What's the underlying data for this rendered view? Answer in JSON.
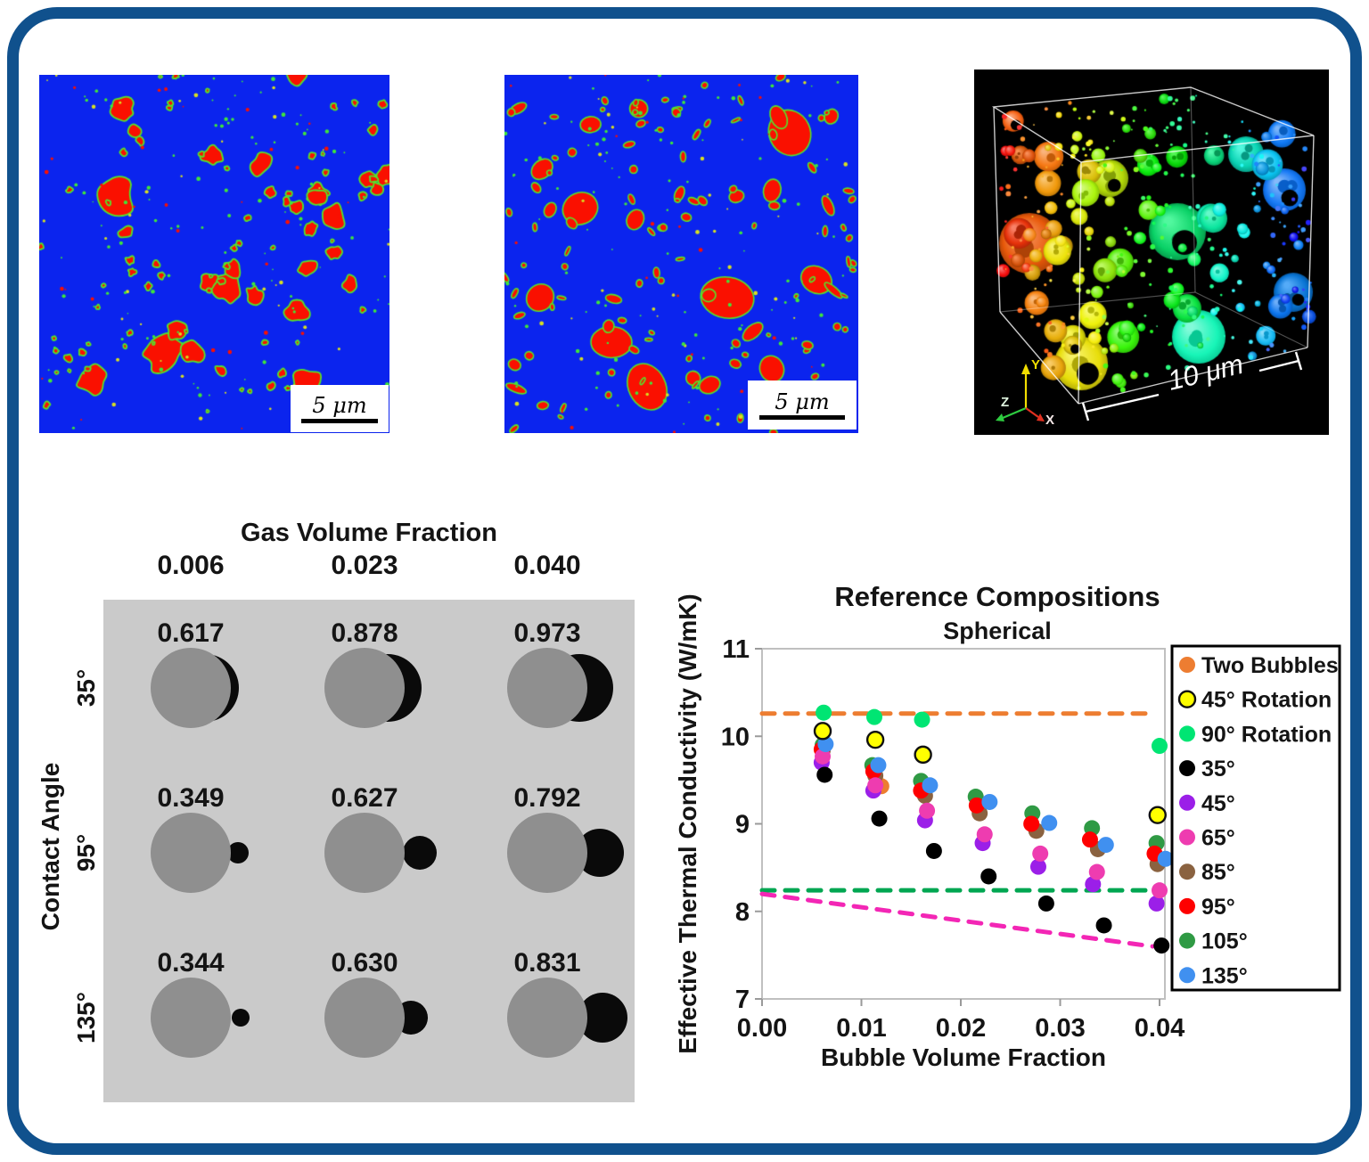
{
  "panels": {
    "seg1": {
      "scale_label": "5 μm",
      "bg": "#0B24EE",
      "blob_fill": "#FA1000",
      "blob_outline": "#55E42A",
      "speck_yellow": "#D8E020",
      "speck_green": "#3FE63A"
    },
    "seg2": {
      "scale_label": "5 μm",
      "bg": "#0B24EE",
      "blob_fill": "#FA1000",
      "blob_outline": "#55E42A",
      "speck_yellow": "#D8E020",
      "speck_green": "#3FE63A"
    },
    "render3d": {
      "scale_label": "10 μm",
      "axis_x": "X",
      "axis_y": "Y",
      "axis_z": "Z",
      "bg": "#000000"
    }
  },
  "grid_diagram": {
    "title": "Gas Volume Fraction",
    "cols": [
      "0.006",
      "0.023",
      "0.040"
    ],
    "row_axis": "Contact Angle",
    "rows": [
      "35°",
      "95°",
      "135°"
    ],
    "values": [
      [
        "0.617",
        "0.878",
        "0.973"
      ],
      [
        "0.349",
        "0.627",
        "0.792"
      ],
      [
        "0.344",
        "0.630",
        "0.831"
      ]
    ],
    "bg": "#CACACA",
    "grain_color": "#8F8F8F",
    "bubble_color": "#0A0A0A",
    "grain_radius": 45,
    "bubbles": [
      [
        [
          16,
          38
        ],
        [
          26,
          38
        ],
        [
          36,
          38
        ]
      ],
      [
        [
          53,
          12
        ],
        [
          62,
          19
        ],
        [
          59,
          27
        ]
      ],
      [
        [
          56,
          10
        ],
        [
          52,
          19
        ],
        [
          62,
          28
        ]
      ]
    ]
  },
  "chart_data": {
    "type": "scatter",
    "title": "Reference Compositions",
    "subtitle": "Spherical",
    "xlabel": "Bubble Volume Fraction",
    "ylabel": "Effective Thermal Conductivity (W/mK)",
    "xlim": [
      0,
      0.0406
    ],
    "ylim": [
      7,
      11
    ],
    "xticks": [
      0,
      0.01,
      0.02,
      0.03,
      0.04
    ],
    "xtick_labels": [
      "0.00",
      "0.01",
      "0.02",
      "0.03",
      "0.04"
    ],
    "yticks": [
      7,
      8,
      9,
      10,
      11
    ],
    "grid": false,
    "legend_position": "right",
    "dashed_lines": [
      {
        "name": "upper-bound",
        "color": "#ED7D31",
        "points": [
          [
            0,
            10.26
          ],
          [
            0.039,
            10.26
          ]
        ]
      },
      {
        "name": "lower-bound",
        "color": "#00A651",
        "points": [
          [
            0,
            8.24
          ],
          [
            0.0393,
            8.24
          ]
        ]
      },
      {
        "name": "series-bound",
        "color": "#F326B5",
        "points": [
          [
            0,
            8.2
          ],
          [
            0.0393,
            7.6
          ]
        ]
      }
    ],
    "series": [
      {
        "name": "Two Bubbles",
        "color": "#ED7D31",
        "outline": null,
        "points": [
          [
            0.012,
            9.43
          ]
        ]
      },
      {
        "name": "45° Rotation",
        "color": "#FFFF00",
        "outline": "#111111",
        "points": [
          [
            0.0061,
            10.06
          ],
          [
            0.0114,
            9.96
          ],
          [
            0.0162,
            9.79
          ],
          [
            0.0398,
            9.1
          ]
        ]
      },
      {
        "name": "90° Rotation",
        "color": "#00E573",
        "outline": null,
        "points": [
          [
            0.0062,
            10.27
          ],
          [
            0.0113,
            10.22
          ],
          [
            0.0161,
            10.19
          ],
          [
            0.04,
            9.89
          ]
        ]
      },
      {
        "name": "35°",
        "color": "#000000",
        "outline": null,
        "points": [
          [
            0.0063,
            9.56
          ],
          [
            0.0118,
            9.06
          ],
          [
            0.0173,
            8.69
          ],
          [
            0.0228,
            8.4
          ],
          [
            0.0286,
            8.09
          ],
          [
            0.0344,
            7.84
          ],
          [
            0.0402,
            7.61
          ]
        ]
      },
      {
        "name": "45°",
        "color": "#9B1FE8",
        "outline": null,
        "points": [
          [
            0.006,
            9.7
          ],
          [
            0.0112,
            9.38
          ],
          [
            0.0164,
            9.04
          ],
          [
            0.0222,
            8.78
          ],
          [
            0.0278,
            8.51
          ],
          [
            0.0333,
            8.31
          ],
          [
            0.0397,
            8.09
          ]
        ]
      },
      {
        "name": "65°",
        "color": "#EE3CB0",
        "outline": null,
        "points": [
          [
            0.0061,
            9.77
          ],
          [
            0.0114,
            9.44
          ],
          [
            0.0166,
            9.15
          ],
          [
            0.0224,
            8.88
          ],
          [
            0.028,
            8.66
          ],
          [
            0.0337,
            8.45
          ],
          [
            0.04,
            8.24
          ]
        ]
      },
      {
        "name": "85°",
        "color": "#8A6240",
        "outline": null,
        "points": [
          [
            0.0061,
            9.84
          ],
          [
            0.0114,
            9.55
          ],
          [
            0.0164,
            9.32
          ],
          [
            0.0219,
            9.12
          ],
          [
            0.0276,
            8.92
          ],
          [
            0.0338,
            8.71
          ],
          [
            0.0398,
            8.54
          ]
        ]
      },
      {
        "name": "95°",
        "color": "#FE0000",
        "outline": null,
        "points": [
          [
            0.006,
            9.85
          ],
          [
            0.0112,
            9.6
          ],
          [
            0.016,
            9.38
          ],
          [
            0.0216,
            9.21
          ],
          [
            0.0271,
            9.0
          ],
          [
            0.033,
            8.82
          ],
          [
            0.0395,
            8.66
          ]
        ]
      },
      {
        "name": "105°",
        "color": "#2F9A44",
        "outline": null,
        "points": [
          [
            0.0061,
            9.9
          ],
          [
            0.0111,
            9.67
          ],
          [
            0.016,
            9.49
          ],
          [
            0.0215,
            9.31
          ],
          [
            0.0272,
            9.12
          ],
          [
            0.0332,
            8.95
          ],
          [
            0.0397,
            8.78
          ]
        ]
      },
      {
        "name": "135°",
        "color": "#4090F0",
        "outline": null,
        "points": [
          [
            0.0064,
            9.91
          ],
          [
            0.0117,
            9.67
          ],
          [
            0.0169,
            9.44
          ],
          [
            0.0229,
            9.25
          ],
          [
            0.0289,
            9.01
          ],
          [
            0.0346,
            8.76
          ],
          [
            0.0406,
            8.6
          ]
        ]
      }
    ],
    "legend": [
      {
        "label": "Two Bubbles",
        "color": "#ED7D31",
        "outline": null
      },
      {
        "label": "45° Rotation",
        "color": "#FFFF00",
        "outline": "#111111"
      },
      {
        "label": "90° Rotation",
        "color": "#00E573",
        "outline": null
      },
      {
        "label": "35°",
        "color": "#000000",
        "outline": null
      },
      {
        "label": "45°",
        "color": "#9B1FE8",
        "outline": null
      },
      {
        "label": "65°",
        "color": "#EE3CB0",
        "outline": null
      },
      {
        "label": "85°",
        "color": "#8A6240",
        "outline": null
      },
      {
        "label": "95°",
        "color": "#FE0000",
        "outline": null
      },
      {
        "label": "105°",
        "color": "#2F9A44",
        "outline": null
      },
      {
        "label": "135°",
        "color": "#4090F0",
        "outline": null
      }
    ]
  }
}
